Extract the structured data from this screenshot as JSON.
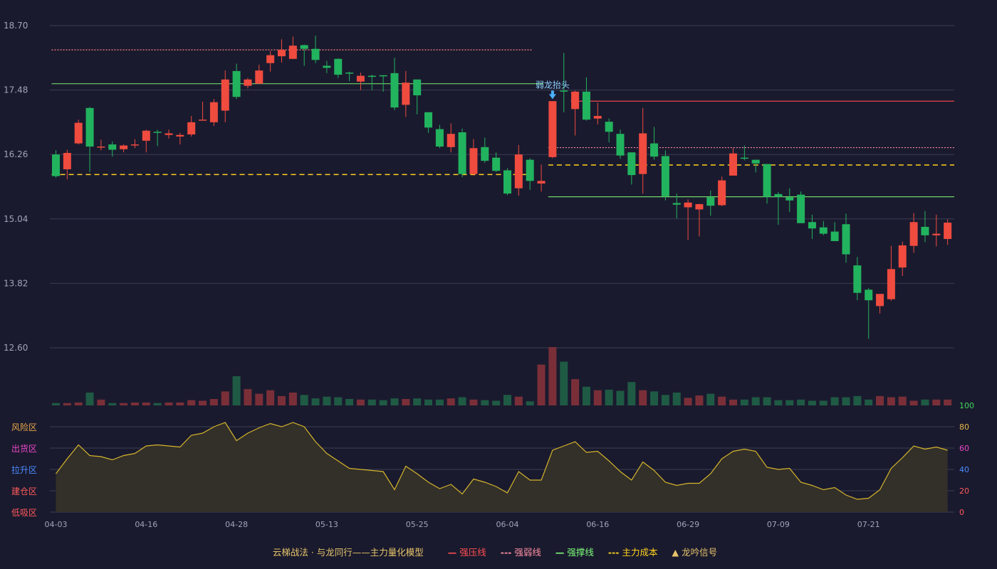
{
  "legend": {
    "title": "云梯战法 · 与龙同行——主力量化模型",
    "items": [
      {
        "label": "强压线",
        "color": "#ff4d4f",
        "symbol": "—"
      },
      {
        "label": "强弱线",
        "color": "#ff8fa3",
        "symbol": "---"
      },
      {
        "label": "强撑线",
        "color": "#7dff7a",
        "symbol": "—"
      },
      {
        "label": "主力成本",
        "color": "#ffd21f",
        "symbol": "---"
      },
      {
        "label": "龙吟信号",
        "color": "#e6c46a",
        "symbol": "▲"
      }
    ]
  },
  "colors": {
    "up": "#ef4b3f",
    "down": "#22b35e",
    "grid": "#3a3d52",
    "text": "#a0a4b8",
    "signal": "#4ab0ff",
    "osc_line": "#d4b52c",
    "osc_fill": "#332f29"
  },
  "chart_data": {
    "type": "candlestick",
    "price_axis": {
      "ticks": [
        "18.70",
        "17.48",
        "16.26",
        "15.04",
        "13.82",
        "12.60"
      ],
      "min": 12.6,
      "max": 18.7
    },
    "x_ticks": [
      {
        "index": 0,
        "label": "04-03"
      },
      {
        "index": 8,
        "label": "04-16"
      },
      {
        "index": 16,
        "label": "04-28"
      },
      {
        "index": 24,
        "label": "05-13"
      },
      {
        "index": 32,
        "label": "05-25"
      },
      {
        "index": 40,
        "label": "06-04"
      },
      {
        "index": 48,
        "label": "06-16"
      },
      {
        "index": 56,
        "label": "06-29"
      },
      {
        "index": 64,
        "label": "07-09"
      },
      {
        "index": 72,
        "label": "07-21"
      }
    ],
    "candles": [
      [
        16.26,
        15.85,
        16.34,
        15.82
      ],
      [
        15.98,
        16.29,
        16.35,
        15.79
      ],
      [
        16.47,
        16.86,
        16.92,
        16.45
      ],
      [
        17.14,
        16.41,
        17.16,
        15.93
      ],
      [
        16.41,
        16.41,
        16.54,
        16.34
      ],
      [
        16.45,
        16.35,
        16.51,
        16.22
      ],
      [
        16.36,
        16.43,
        16.45,
        16.3
      ],
      [
        16.44,
        16.45,
        16.55,
        16.38
      ],
      [
        16.52,
        16.71,
        16.73,
        16.3
      ],
      [
        16.69,
        16.68,
        16.73,
        16.42
      ],
      [
        16.63,
        16.66,
        16.73,
        16.56
      ],
      [
        16.6,
        16.63,
        16.67,
        16.45
      ],
      [
        16.64,
        16.87,
        16.99,
        16.6
      ],
      [
        16.91,
        16.92,
        17.26,
        16.92
      ],
      [
        16.87,
        17.25,
        17.31,
        16.8
      ],
      [
        17.09,
        17.68,
        17.85,
        16.87
      ],
      [
        17.84,
        17.35,
        17.98,
        17.31
      ],
      [
        17.56,
        17.68,
        17.71,
        17.51
      ],
      [
        17.6,
        17.85,
        17.96,
        17.6
      ],
      [
        17.99,
        18.14,
        18.22,
        17.83
      ],
      [
        18.12,
        18.24,
        18.44,
        18.0
      ],
      [
        18.07,
        18.32,
        18.49,
        18.07
      ],
      [
        18.33,
        18.26,
        18.34,
        17.94
      ],
      [
        18.26,
        18.05,
        18.51,
        17.99
      ],
      [
        17.94,
        17.9,
        18.03,
        17.8
      ],
      [
        18.07,
        17.77,
        18.08,
        17.71
      ],
      [
        17.81,
        17.8,
        17.83,
        17.65
      ],
      [
        17.64,
        17.75,
        17.81,
        17.48
      ],
      [
        17.75,
        17.73,
        17.77,
        17.48
      ],
      [
        17.76,
        17.74,
        17.76,
        17.45
      ],
      [
        17.8,
        17.15,
        18.09,
        17.1
      ],
      [
        17.2,
        17.62,
        17.84,
        16.97
      ],
      [
        17.68,
        17.38,
        17.64,
        17.02
      ],
      [
        17.06,
        16.77,
        17.04,
        16.67
      ],
      [
        16.74,
        16.41,
        16.82,
        16.38
      ],
      [
        16.4,
        16.65,
        16.85,
        16.3
      ],
      [
        16.68,
        15.89,
        16.75,
        15.83
      ],
      [
        15.89,
        16.38,
        16.55,
        15.86
      ],
      [
        16.4,
        16.14,
        16.58,
        16.1
      ],
      [
        16.2,
        15.95,
        16.3,
        15.93
      ],
      [
        15.96,
        15.52,
        16.0,
        15.49
      ],
      [
        15.62,
        16.26,
        16.44,
        15.48
      ],
      [
        16.16,
        15.76,
        16.19,
        15.59
      ],
      [
        15.71,
        15.76,
        16.07,
        15.56
      ],
      [
        16.21,
        17.27,
        17.27,
        16.19
      ],
      [
        17.47,
        17.45,
        18.18,
        17.06
      ],
      [
        17.12,
        17.45,
        17.47,
        16.62
      ],
      [
        17.45,
        16.92,
        17.72,
        16.9
      ],
      [
        16.94,
        16.99,
        17.24,
        16.83
      ],
      [
        16.88,
        16.69,
        16.94,
        16.49
      ],
      [
        16.65,
        16.24,
        16.73,
        16.18
      ],
      [
        16.3,
        15.87,
        16.26,
        15.69
      ],
      [
        15.89,
        16.66,
        17.14,
        15.52
      ],
      [
        16.47,
        16.22,
        16.78,
        16.16
      ],
      [
        16.23,
        15.47,
        16.34,
        15.39
      ],
      [
        15.34,
        15.31,
        15.52,
        15.05
      ],
      [
        15.26,
        15.35,
        15.41,
        14.64
      ],
      [
        15.22,
        15.32,
        15.33,
        14.71
      ],
      [
        15.45,
        15.29,
        15.58,
        15.1
      ],
      [
        15.3,
        15.77,
        15.84,
        15.28
      ],
      [
        15.86,
        16.28,
        16.38,
        15.89
      ],
      [
        16.2,
        16.19,
        16.43,
        16.15
      ],
      [
        16.16,
        16.09,
        16.16,
        15.92
      ],
      [
        16.08,
        15.46,
        16.06,
        15.33
      ],
      [
        15.51,
        15.46,
        15.55,
        14.93
      ],
      [
        15.45,
        15.39,
        15.62,
        15.17
      ],
      [
        15.5,
        14.96,
        15.56,
        14.98
      ],
      [
        14.98,
        14.86,
        15.12,
        14.66
      ],
      [
        14.88,
        14.76,
        15.0,
        14.73
      ],
      [
        14.8,
        14.62,
        14.98,
        14.62
      ],
      [
        14.94,
        14.37,
        15.14,
        14.21
      ],
      [
        14.16,
        13.64,
        14.32,
        13.5
      ],
      [
        13.7,
        13.5,
        13.73,
        12.77
      ],
      [
        13.39,
        13.62,
        13.62,
        13.25
      ],
      [
        13.52,
        14.09,
        14.53,
        13.49
      ],
      [
        14.12,
        14.54,
        14.61,
        13.96
      ],
      [
        14.53,
        14.98,
        15.15,
        14.4
      ],
      [
        14.89,
        14.73,
        15.19,
        14.6
      ],
      [
        14.73,
        14.76,
        15.12,
        14.52
      ],
      [
        14.66,
        14.97,
        15.03,
        14.55
      ]
    ],
    "volume": [
      4,
      4,
      5,
      22,
      10,
      4,
      4,
      5,
      5,
      4,
      5,
      5,
      9,
      8,
      11,
      24,
      50,
      28,
      20,
      26,
      16,
      22,
      18,
      12,
      15,
      14,
      11,
      10,
      10,
      9,
      12,
      11,
      12,
      10,
      10,
      12,
      14,
      10,
      9,
      8,
      18,
      15,
      7,
      70,
      100,
      75,
      45,
      32,
      26,
      27,
      25,
      40,
      26,
      24,
      18,
      22,
      13,
      17,
      20,
      15,
      10,
      10,
      14,
      14,
      9,
      9,
      10,
      8,
      8,
      14,
      14,
      16,
      10,
      16,
      14,
      15,
      8,
      10,
      10,
      10
    ],
    "oscillator": {
      "axis_ticks": [
        "100",
        "80",
        "60",
        "40",
        "20",
        "0"
      ],
      "tick_colors": [
        "#40d95a",
        "#e8b84a",
        "#ea47c8",
        "#4a8cff",
        "#ff5a5a",
        "#ff5a5a"
      ],
      "zones": [
        {
          "label": "风险区",
          "color": "#e8a84a"
        },
        {
          "label": "出货区",
          "color": "#ea47c8"
        },
        {
          "label": "拉升区",
          "color": "#4a8cff"
        },
        {
          "label": "建仓区",
          "color": "#ff5a5a"
        },
        {
          "label": "低吸区",
          "color": "#ff5a5a"
        }
      ],
      "values": [
        36,
        50,
        63,
        53,
        52,
        49,
        53,
        55,
        62,
        63,
        62,
        61,
        72,
        74,
        80,
        84,
        67,
        74,
        79,
        83,
        80,
        84,
        80,
        66,
        55,
        48,
        41,
        40,
        39,
        38,
        21,
        43,
        36,
        28,
        22,
        26,
        17,
        31,
        28,
        24,
        18,
        38,
        30,
        30,
        58,
        62,
        66,
        56,
        57,
        48,
        38,
        30,
        47,
        39,
        28,
        25,
        27,
        27,
        36,
        50,
        57,
        59,
        57,
        42,
        40,
        41,
        28,
        25,
        21,
        23,
        16,
        12,
        13,
        21,
        41,
        51,
        62,
        59,
        61,
        58
      ]
    },
    "overlay_lines": [
      {
        "name": "强压线",
        "style": "dotted",
        "color": "#ff8080",
        "value": 18.24,
        "from": 0,
        "to": 42
      },
      {
        "name": "强撑线",
        "style": "solid",
        "color": "#6ed46a",
        "value": 17.6,
        "from": 0,
        "to": 43
      },
      {
        "name": "主力成本",
        "style": "dashed",
        "color": "#ffd21f",
        "value": 15.88,
        "from": 0,
        "to": 42
      },
      {
        "name": "强压线",
        "style": "solid",
        "color": "#ff4d4f",
        "value": 17.27,
        "from": 46,
        "to": 79
      },
      {
        "name": "强弱线",
        "style": "dotted",
        "color": "#ff8fa3",
        "value": 16.39,
        "from": 44,
        "to": 79
      },
      {
        "name": "主力成本",
        "style": "dashed",
        "color": "#ffd21f",
        "value": 16.06,
        "from": 44,
        "to": 79
      },
      {
        "name": "强撑线",
        "style": "solid",
        "color": "#6ed46a",
        "value": 15.46,
        "from": 44,
        "to": 79
      }
    ],
    "annotations": [
      {
        "label": "弱龙抬头",
        "index": 44,
        "price": 17.47
      }
    ]
  }
}
